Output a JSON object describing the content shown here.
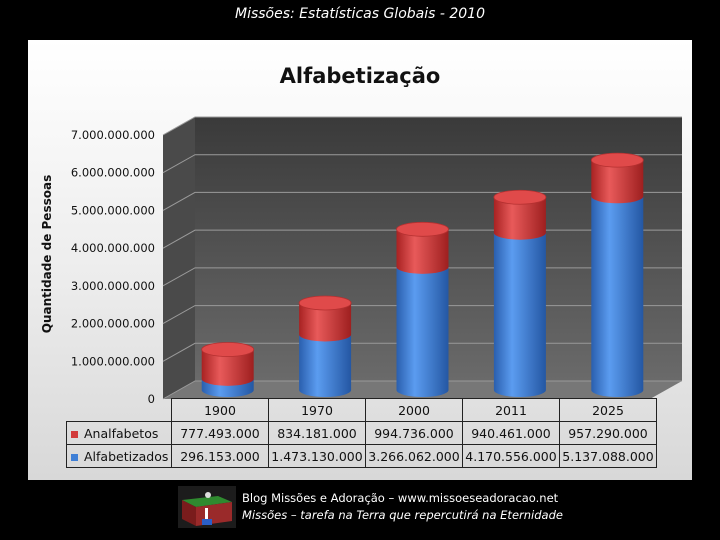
{
  "page": {
    "caption": "Missões: Estatísticas Globais - 2010",
    "footer_line1": "Blog Missões e Adoração – www.missoeseadoracao.net",
    "footer_line2": "Missões – tarefa na Terra que repercutirá na Eternidade"
  },
  "colors": {
    "analfabetos": "#d23a3a",
    "alfabetizados": "#3f7fd6"
  },
  "chart_data": {
    "type": "bar",
    "stacked": true,
    "title": "Alfabetização",
    "xlabel": "",
    "ylabel": "Quantidade de Pessoas",
    "ylim": [
      0,
      7000000000
    ],
    "yticks": [
      "0",
      "1.000.000.000",
      "2.000.000.000",
      "3.000.000.000",
      "4.000.000.000",
      "5.000.000.000",
      "6.000.000.000",
      "7.000.000.000"
    ],
    "categories": [
      "1900",
      "1970",
      "2000",
      "2011",
      "2025"
    ],
    "series": [
      {
        "name": "Analfabetos",
        "values": [
          777493000,
          834181000,
          994736000,
          940461000,
          957290000
        ],
        "labels": [
          "777.493.000",
          "834.181.000",
          "994.736.000",
          "940.461.000",
          "957.290.000"
        ]
      },
      {
        "name": "Alfabetizados",
        "values": [
          296153000,
          1473130000,
          3266062000,
          4170556000,
          5137088000
        ],
        "labels": [
          "296.153.000",
          "1.473.130.000",
          "3.266.062.000",
          "4.170.556.000",
          "5.137.088.000"
        ]
      }
    ],
    "grid": true,
    "legend": "table"
  }
}
